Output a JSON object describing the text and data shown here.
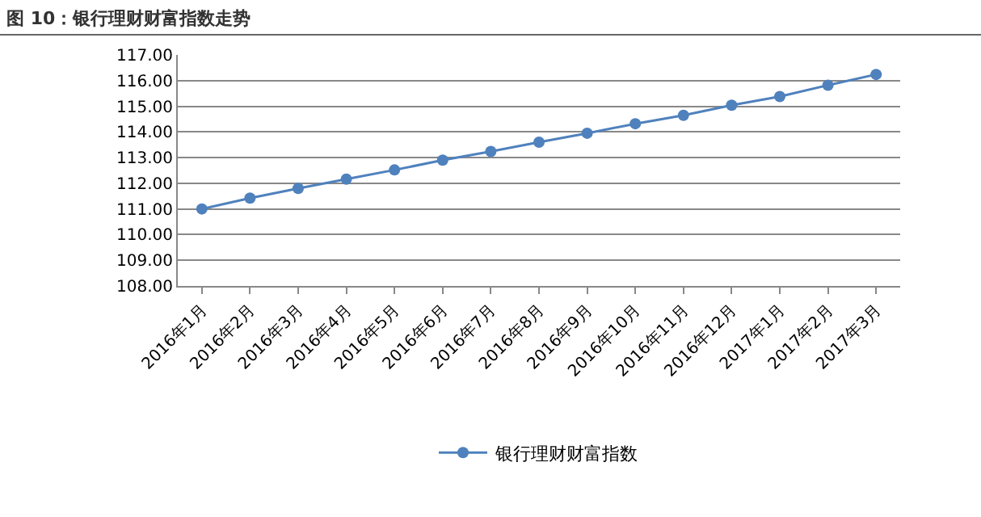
{
  "chart_data": {
    "type": "line",
    "title": "图 10：银行理财财富指数走势",
    "categories": [
      "2016年1月",
      "2016年2月",
      "2016年3月",
      "2016年4月",
      "2016年5月",
      "2016年6月",
      "2016年7月",
      "2016年8月",
      "2016年9月",
      "2016年10月",
      "2016年11月",
      "2016年12月",
      "2017年1月",
      "2017年2月",
      "2017年3月"
    ],
    "series": [
      {
        "name": "银行理财财富指数",
        "color": "#4f81bd",
        "values": [
          111.0,
          111.42,
          111.8,
          112.16,
          112.52,
          112.9,
          113.24,
          113.6,
          113.95,
          114.32,
          114.65,
          115.04,
          115.38,
          115.82,
          116.24
        ]
      }
    ],
    "ylim": [
      108,
      117
    ],
    "yticks": [
      {
        "value": 108,
        "label": "108.00"
      },
      {
        "value": 109,
        "label": "109.00"
      },
      {
        "value": 110,
        "label": "110.00"
      },
      {
        "value": 111,
        "label": "111.00"
      },
      {
        "value": 112,
        "label": "112.00"
      },
      {
        "value": 113,
        "label": "113.00"
      },
      {
        "value": 114,
        "label": "114.00"
      },
      {
        "value": 115,
        "label": "115.00"
      },
      {
        "value": 116,
        "label": "116.00"
      },
      {
        "value": 117,
        "label": "117.00"
      }
    ],
    "grid": "y",
    "legend": "bottom",
    "marker": "circle",
    "line_style": "solid"
  }
}
